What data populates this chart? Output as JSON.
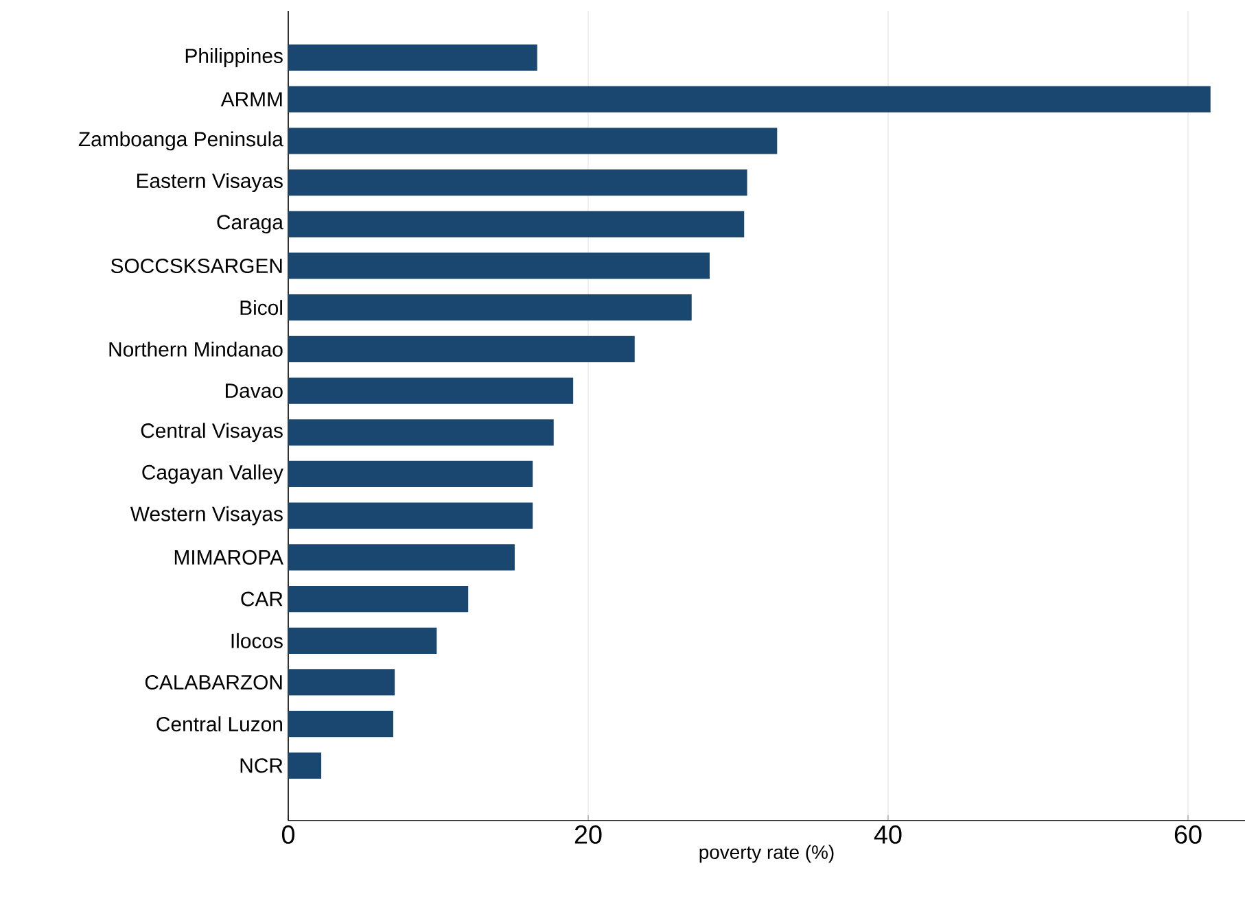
{
  "chart_data": {
    "type": "bar",
    "orientation": "horizontal",
    "xlabel": "poverty rate (%)",
    "categories": [
      "Philippines",
      "ARMM",
      "Zamboanga Peninsula",
      "Eastern Visayas",
      "Caraga",
      "SOCCSKSARGEN",
      "Bicol",
      "Northern Mindanao",
      "Davao",
      "Central Visayas",
      "Cagayan Valley",
      "Western Visayas",
      "MIMAROPA",
      "CAR",
      "Ilocos",
      "CALABARZON",
      "Central Luzon",
      "NCR"
    ],
    "values": [
      16.6,
      61.5,
      32.6,
      30.6,
      30.4,
      28.1,
      26.9,
      23.1,
      19.0,
      17.7,
      16.3,
      16.3,
      15.1,
      12.0,
      9.9,
      7.1,
      7.0,
      2.2
    ],
    "color": "#1a476f",
    "xlim": [
      0,
      63.8
    ],
    "xticks": [
      0,
      20,
      40,
      60
    ],
    "grid": "x"
  }
}
